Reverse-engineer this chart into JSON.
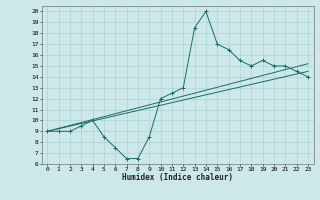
{
  "xlabel": "Humidex (Indice chaleur)",
  "background_color": "#cce8e8",
  "grid_color": "#aad4d4",
  "line_color": "#1a6b6b",
  "xlim": [
    -0.5,
    23.5
  ],
  "ylim": [
    6,
    20.5
  ],
  "xticks": [
    0,
    1,
    2,
    3,
    4,
    5,
    6,
    7,
    8,
    9,
    10,
    11,
    12,
    13,
    14,
    15,
    16,
    17,
    18,
    19,
    20,
    21,
    22,
    23
  ],
  "yticks": [
    6,
    7,
    8,
    9,
    10,
    11,
    12,
    13,
    14,
    15,
    16,
    17,
    18,
    19,
    20
  ],
  "line1_x": [
    0,
    1,
    2,
    3,
    4,
    5,
    6,
    7,
    8,
    9,
    10,
    11,
    12,
    13,
    14,
    15,
    16,
    17,
    18,
    19,
    20,
    21,
    22,
    23
  ],
  "line1_y": [
    9,
    9,
    9,
    9.5,
    10,
    8.5,
    7.5,
    6.5,
    6.5,
    8.5,
    12,
    12.5,
    13,
    18.5,
    20,
    17,
    16.5,
    15.5,
    15,
    15.5,
    15,
    15,
    14.5,
    14
  ],
  "line2_x": [
    0,
    23
  ],
  "line2_y": [
    9,
    14.5
  ],
  "line3_x": [
    0,
    23
  ],
  "line3_y": [
    9,
    15.2
  ]
}
